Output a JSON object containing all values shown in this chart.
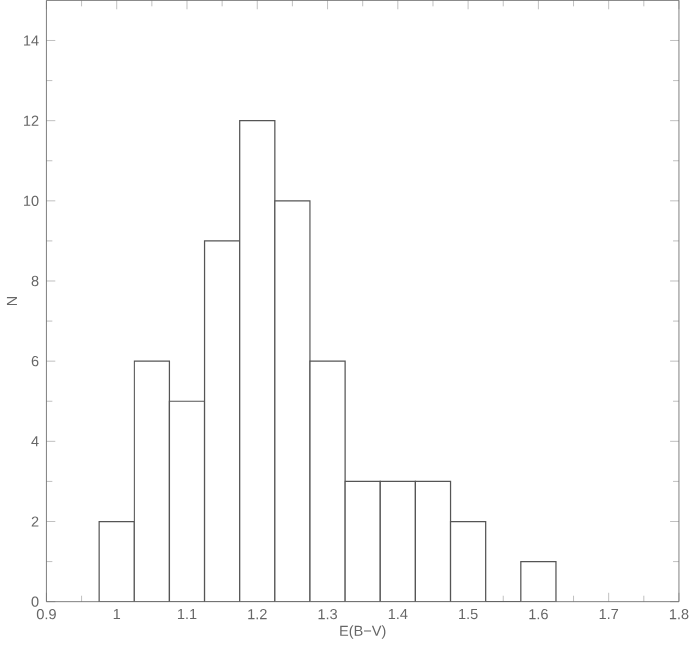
{
  "chart_data": {
    "type": "histogram",
    "xlabel": "E(B−V)",
    "ylabel": "N",
    "bins": [
      0.975,
      1.025,
      1.075,
      1.125,
      1.175,
      1.225,
      1.275,
      1.325,
      1.375,
      1.425,
      1.475,
      1.525,
      1.575,
      1.625
    ],
    "values": [
      2,
      6,
      5,
      9,
      12,
      10,
      6,
      3,
      3,
      3,
      2,
      0,
      1
    ],
    "color": "#555555",
    "xlim": [
      0.9,
      1.8
    ],
    "xticks": [
      0.9,
      1,
      1.1,
      1.2,
      1.3,
      1.4,
      1.5,
      1.6,
      1.7,
      1.8
    ],
    "ylim": [
      0,
      15
    ],
    "yticks": [
      0,
      2,
      4,
      6,
      8,
      10,
      12,
      14
    ]
  }
}
